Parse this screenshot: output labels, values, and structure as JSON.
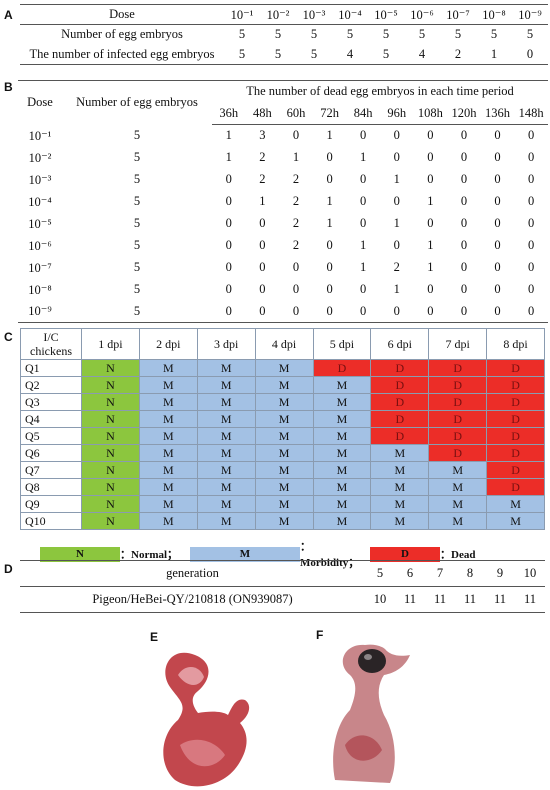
{
  "panel_a": {
    "label": "A",
    "header": "Dose",
    "doses": [
      "10⁻¹",
      "10⁻²",
      "10⁻³",
      "10⁻⁴",
      "10⁻⁵",
      "10⁻⁶",
      "10⁻⁷",
      "10⁻⁸",
      "10⁻⁹"
    ],
    "rows": [
      {
        "label": "Number of egg embryos",
        "values": [
          5,
          5,
          5,
          5,
          5,
          5,
          5,
          5,
          5
        ]
      },
      {
        "label": "The number of infected egg embryos",
        "values": [
          5,
          5,
          5,
          4,
          5,
          4,
          2,
          1,
          0
        ]
      }
    ]
  },
  "panel_b": {
    "label": "B",
    "dose_header": "Dose",
    "count_header": "Number of egg embryos",
    "period_header": "The number of dead egg embryos in each time period",
    "times": [
      "36h",
      "48h",
      "60h",
      "72h",
      "84h",
      "96h",
      "108h",
      "120h",
      "136h",
      "148h"
    ],
    "rows": [
      {
        "dose": "10⁻¹",
        "count": 5,
        "deaths": [
          1,
          3,
          0,
          1,
          0,
          0,
          0,
          0,
          0,
          0
        ]
      },
      {
        "dose": "10⁻²",
        "count": 5,
        "deaths": [
          1,
          2,
          1,
          0,
          1,
          0,
          0,
          0,
          0,
          0
        ]
      },
      {
        "dose": "10⁻³",
        "count": 5,
        "deaths": [
          0,
          2,
          2,
          0,
          0,
          1,
          0,
          0,
          0,
          0
        ]
      },
      {
        "dose": "10⁻⁴",
        "count": 5,
        "deaths": [
          0,
          1,
          2,
          1,
          0,
          0,
          1,
          0,
          0,
          0
        ]
      },
      {
        "dose": "10⁻⁵",
        "count": 5,
        "deaths": [
          0,
          0,
          2,
          1,
          0,
          1,
          0,
          0,
          0,
          0
        ]
      },
      {
        "dose": "10⁻⁶",
        "count": 5,
        "deaths": [
          0,
          0,
          2,
          0,
          1,
          0,
          1,
          0,
          0,
          0
        ]
      },
      {
        "dose": "10⁻⁷",
        "count": 5,
        "deaths": [
          0,
          0,
          0,
          0,
          1,
          2,
          1,
          0,
          0,
          0
        ]
      },
      {
        "dose": "10⁻⁸",
        "count": 5,
        "deaths": [
          0,
          0,
          0,
          0,
          0,
          1,
          0,
          0,
          0,
          0
        ]
      },
      {
        "dose": "10⁻⁹",
        "count": 5,
        "deaths": [
          0,
          0,
          0,
          0,
          0,
          0,
          0,
          0,
          0,
          0
        ]
      }
    ]
  },
  "panel_c": {
    "label": "C",
    "corner": "I/C chickens",
    "days": [
      "1 dpi",
      "2 dpi",
      "3 dpi",
      "4 dpi",
      "5 dpi",
      "6 dpi",
      "7 dpi",
      "8 dpi"
    ],
    "rows": [
      {
        "id": "Q1",
        "status": [
          "N",
          "M",
          "M",
          "M",
          "D",
          "D",
          "D",
          "D"
        ]
      },
      {
        "id": "Q2",
        "status": [
          "N",
          "M",
          "M",
          "M",
          "M",
          "D",
          "D",
          "D"
        ]
      },
      {
        "id": "Q3",
        "status": [
          "N",
          "M",
          "M",
          "M",
          "M",
          "D",
          "D",
          "D"
        ]
      },
      {
        "id": "Q4",
        "status": [
          "N",
          "M",
          "M",
          "M",
          "M",
          "D",
          "D",
          "D"
        ]
      },
      {
        "id": "Q5",
        "status": [
          "N",
          "M",
          "M",
          "M",
          "M",
          "D",
          "D",
          "D"
        ]
      },
      {
        "id": "Q6",
        "status": [
          "N",
          "M",
          "M",
          "M",
          "M",
          "M",
          "D",
          "D"
        ]
      },
      {
        "id": "Q7",
        "status": [
          "N",
          "M",
          "M",
          "M",
          "M",
          "M",
          "M",
          "D"
        ]
      },
      {
        "id": "Q8",
        "status": [
          "N",
          "M",
          "M",
          "M",
          "M",
          "M",
          "M",
          "D"
        ]
      },
      {
        "id": "Q9",
        "status": [
          "N",
          "M",
          "M",
          "M",
          "M",
          "M",
          "M",
          "M"
        ]
      },
      {
        "id": "Q10",
        "status": [
          "N",
          "M",
          "M",
          "M",
          "M",
          "M",
          "M",
          "M"
        ]
      }
    ],
    "legend": [
      {
        "code": "N",
        "text": "：Normal；"
      },
      {
        "code": "M",
        "text": "：Morbidity；"
      },
      {
        "code": "D",
        "text": "：Dead"
      }
    ]
  },
  "panel_d": {
    "label": "D",
    "header": "generation",
    "generations": [
      5,
      6,
      7,
      8,
      9,
      10
    ],
    "rows": [
      {
        "label": "Pigeon/HeBei-QY/210818 (ON939087)",
        "values": [
          10,
          11,
          11,
          11,
          11,
          11
        ]
      }
    ]
  },
  "panel_e": {
    "label": "E"
  },
  "panel_f": {
    "label": "F"
  }
}
